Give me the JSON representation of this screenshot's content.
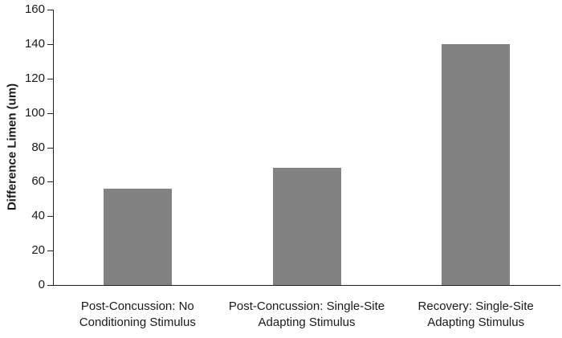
{
  "chart_data": {
    "type": "bar",
    "categories": [
      "Post-Concussion: No Conditioning Stimulus",
      "Post-Concussion: Single-Site Adapting Stimulus",
      "Recovery: Single-Site Adapting Stimulus"
    ],
    "values": [
      56,
      68,
      140
    ],
    "title": "",
    "xlabel": "",
    "ylabel": "Difference Limen (um)",
    "ylim": [
      0,
      160
    ],
    "yticks": [
      0,
      20,
      40,
      60,
      80,
      100,
      120,
      140,
      160
    ],
    "bar_color": "#828282",
    "axis_color": "#1f1f1f",
    "grid": false,
    "legend": false
  }
}
